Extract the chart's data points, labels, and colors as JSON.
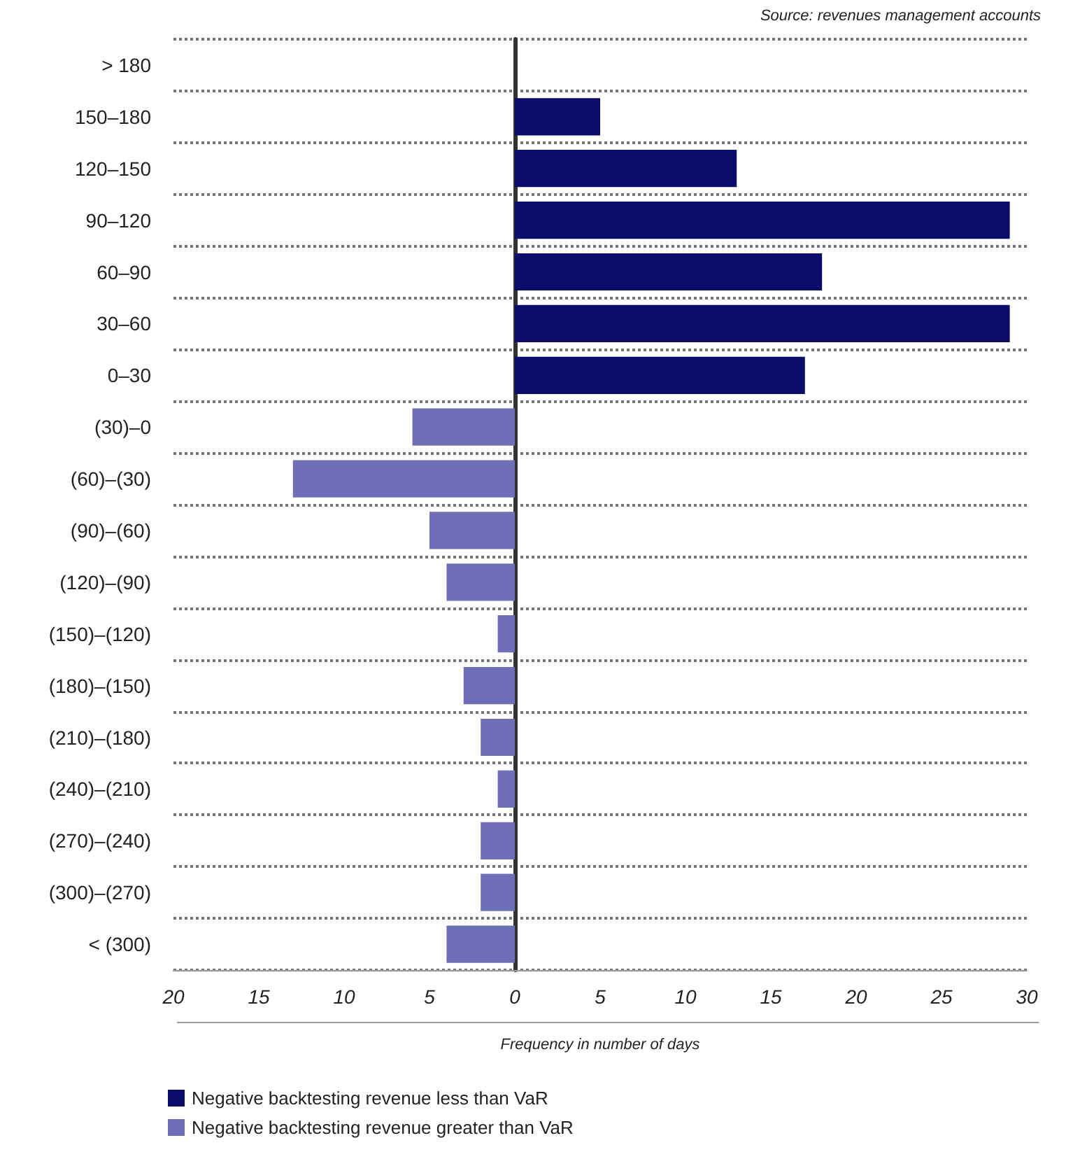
{
  "chart_data": {
    "type": "bar",
    "orientation": "horizontal",
    "xlabel": "Frequency in number of days",
    "annotations": [
      "Source: revenues management accounts"
    ],
    "categories": [
      "> 180",
      "150–180",
      "120–150",
      "90–120",
      "60–90",
      "30–60",
      "0–30",
      "(30)–0",
      "(60)–(30)",
      "(90)–(60)",
      "(120)–(90)",
      "(150)–(120)",
      "(180)–(150)",
      "(210)–(180)",
      "(240)–(210)",
      "(270)–(240)",
      "(300)–(270)",
      "< (300)"
    ],
    "series": [
      {
        "name": "Negative backtesting revenue less than VaR",
        "color": "#0b0b6b",
        "values": [
          0,
          5,
          13,
          29,
          18,
          29,
          17,
          null,
          null,
          null,
          null,
          null,
          null,
          null,
          null,
          null,
          null,
          null
        ]
      },
      {
        "name": "Negative backtesting revenue greater than VaR",
        "color": "#6f6fb8",
        "values": [
          null,
          null,
          null,
          null,
          null,
          null,
          null,
          -6,
          -13,
          -5,
          -4,
          -1,
          -3,
          -2,
          -1,
          -2,
          -2,
          -4
        ]
      }
    ],
    "xlim": [
      -20,
      30
    ],
    "xticks": [
      {
        "value": -20,
        "label": "20"
      },
      {
        "value": -15,
        "label": "15"
      },
      {
        "value": -10,
        "label": "10"
      },
      {
        "value": -5,
        "label": "5"
      },
      0,
      5,
      10,
      15,
      20,
      25,
      30
    ],
    "grid": "y",
    "legend": "bottom"
  }
}
